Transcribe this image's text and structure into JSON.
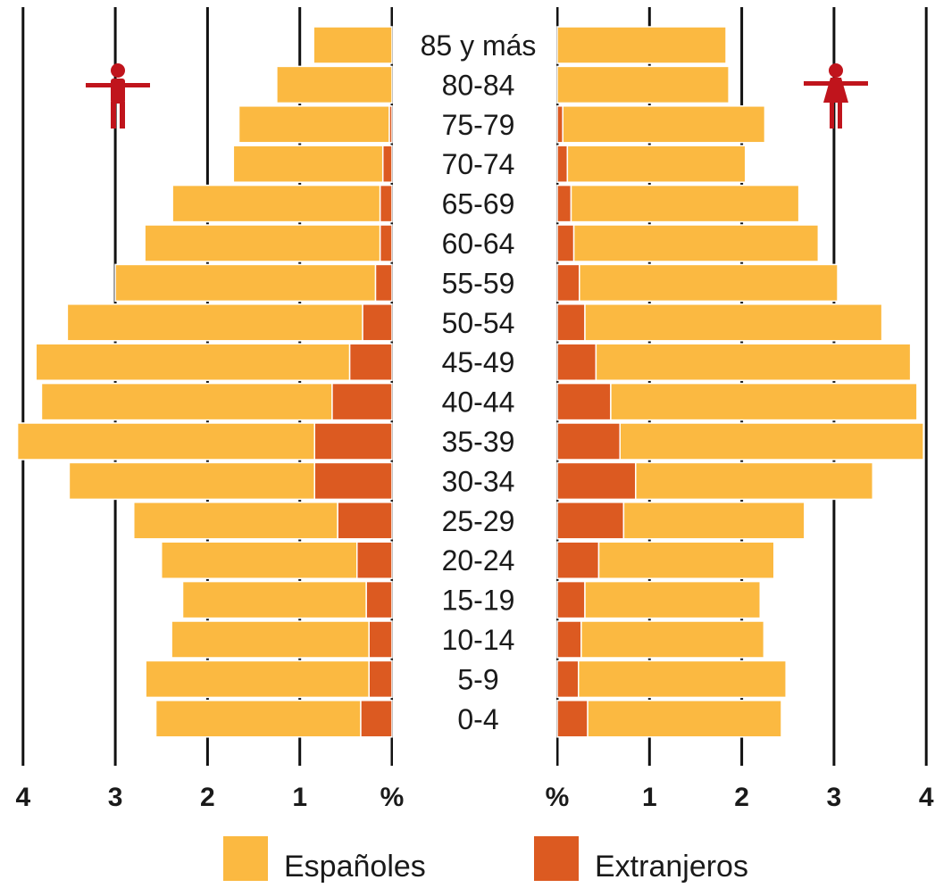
{
  "chart_data": {
    "type": "bar",
    "subtype": "population-pyramid",
    "categories": [
      "85 y más",
      "80-84",
      "75-79",
      "70-74",
      "65-69",
      "60-64",
      "55-59",
      "50-54",
      "45-49",
      "40-44",
      "35-39",
      "30-34",
      "25-29",
      "20-24",
      "15-19",
      "10-14",
      "5-9",
      "0-4"
    ],
    "left": {
      "icon": "male-figure-icon",
      "series": [
        {
          "name": "Españoles",
          "values": [
            0.85,
            1.25,
            1.63,
            1.62,
            2.25,
            2.55,
            2.82,
            3.2,
            3.4,
            3.15,
            3.22,
            2.66,
            2.21,
            2.12,
            1.99,
            2.14,
            2.42,
            2.22
          ]
        },
        {
          "name": "Extranjeros",
          "values": [
            0.0,
            0.0,
            0.03,
            0.1,
            0.13,
            0.13,
            0.18,
            0.32,
            0.46,
            0.65,
            0.84,
            0.84,
            0.59,
            0.38,
            0.28,
            0.25,
            0.25,
            0.34
          ]
        }
      ]
    },
    "right": {
      "icon": "female-figure-icon",
      "series": [
        {
          "name": "Españoles",
          "values": [
            1.83,
            1.86,
            2.19,
            1.93,
            2.47,
            2.65,
            2.8,
            3.22,
            3.41,
            3.32,
            3.29,
            2.57,
            1.96,
            1.9,
            1.9,
            1.98,
            2.25,
            2.1
          ]
        },
        {
          "name": "Extranjeros",
          "values": [
            0.0,
            0.0,
            0.06,
            0.11,
            0.15,
            0.18,
            0.24,
            0.3,
            0.42,
            0.58,
            0.68,
            0.85,
            0.72,
            0.45,
            0.3,
            0.26,
            0.23,
            0.33
          ]
        }
      ]
    },
    "xaxis": {
      "left_ticks": [
        "4",
        "3",
        "2",
        "1",
        "%"
      ],
      "right_ticks": [
        "%",
        "1",
        "2",
        "3",
        "4"
      ],
      "range": [
        0,
        4
      ]
    },
    "legend": {
      "position": "bottom-center",
      "entries": [
        {
          "label": "Españoles",
          "color": "#FBB941"
        },
        {
          "label": "Extranjeros",
          "color": "#DC5A21"
        }
      ]
    },
    "colors": {
      "espanoles": "#FBB941",
      "extranjeros": "#DC5A21",
      "gridline": "#111111",
      "icon": "#C0141C"
    }
  }
}
